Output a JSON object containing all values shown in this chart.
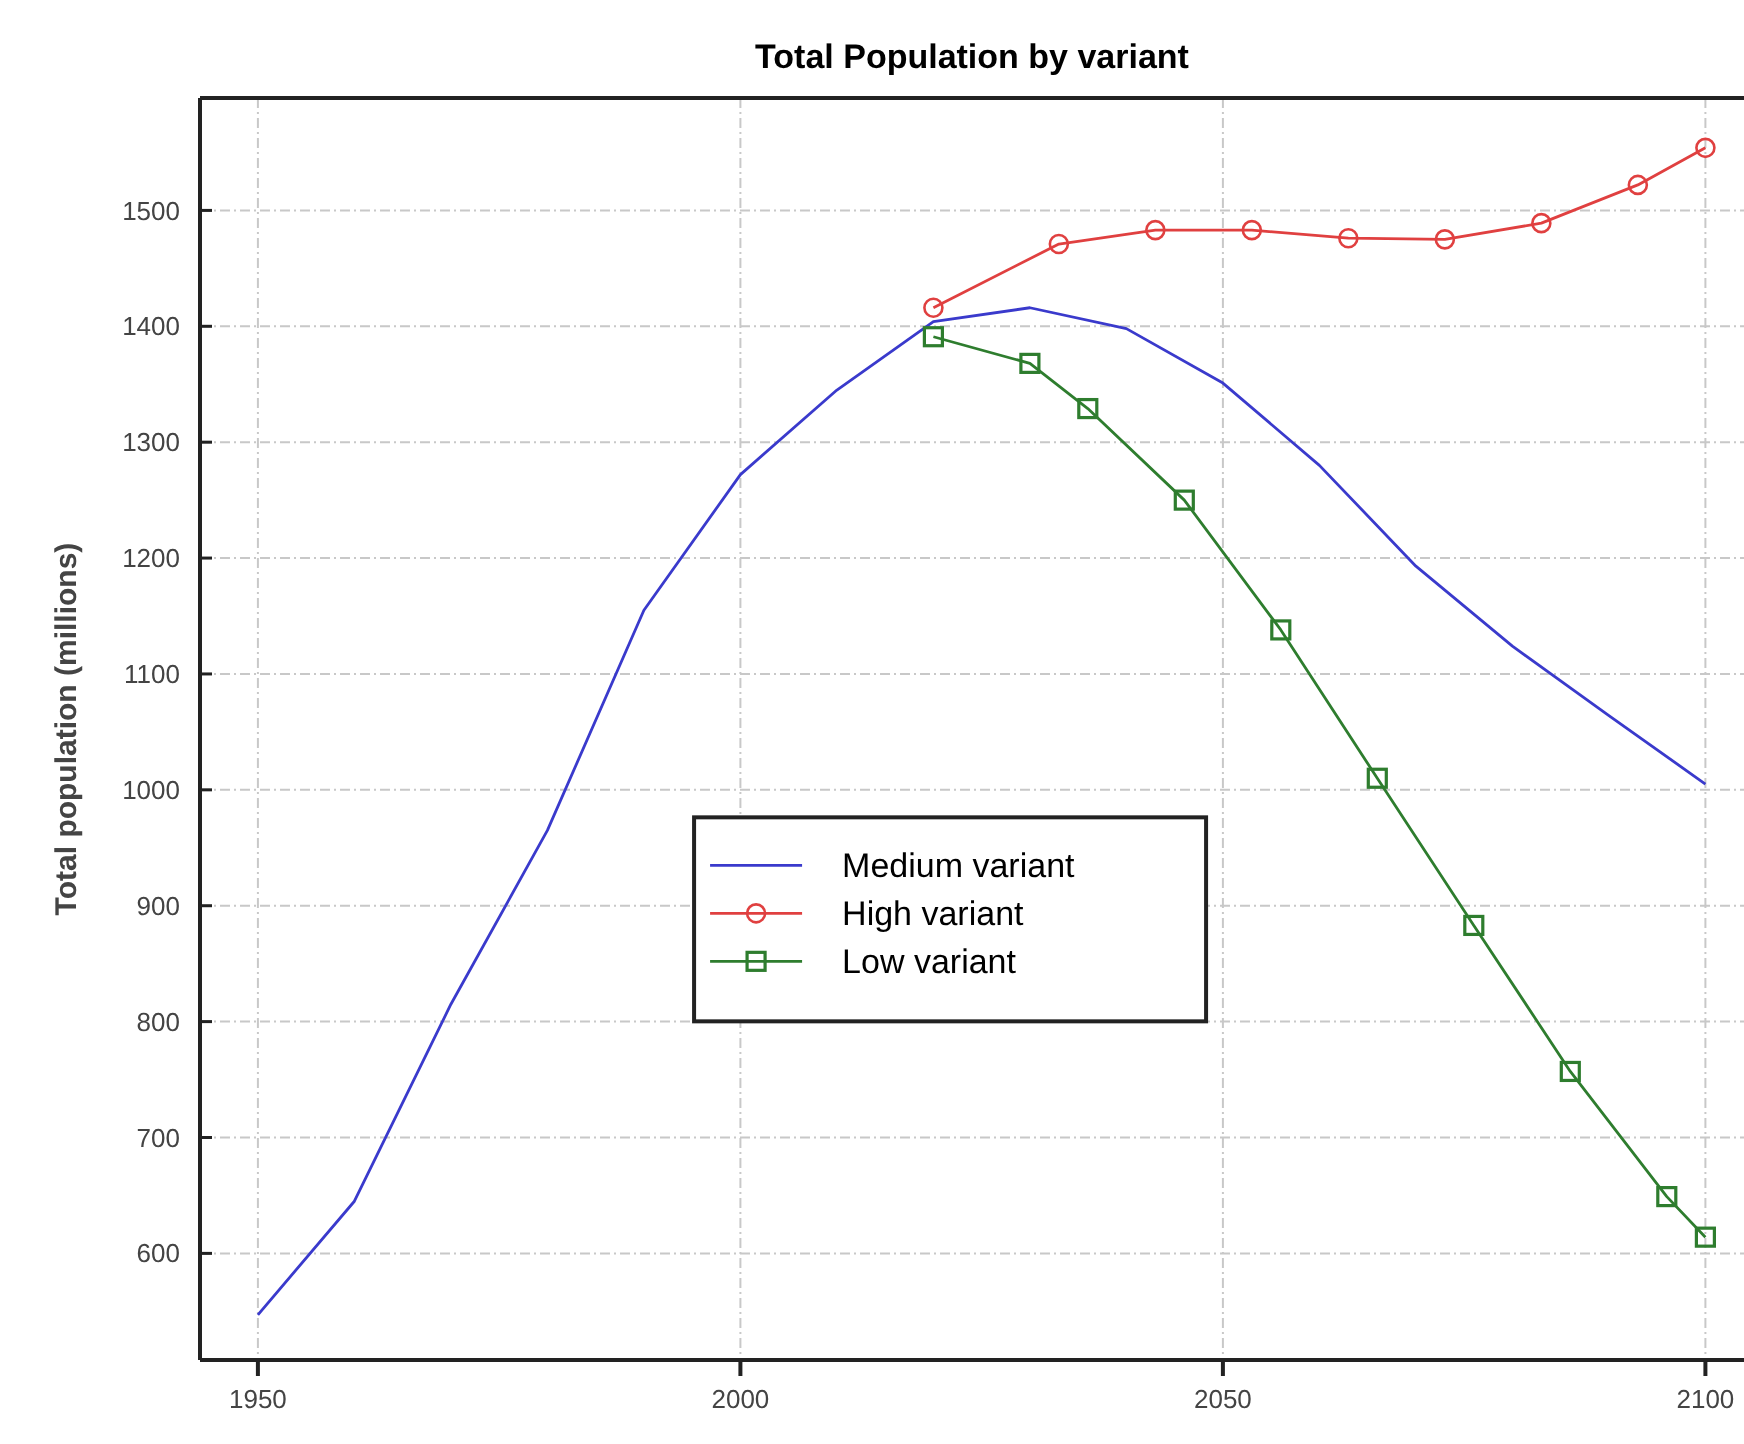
{
  "chart_data": {
    "type": "line",
    "title": "Total Population by variant",
    "ylabel": "Total population (millions)",
    "xlim": [
      1944,
      2104
    ],
    "xticks": [
      1950,
      2000,
      2050,
      2100
    ],
    "ylim": [
      508,
      1597
    ],
    "yticks": [
      600,
      700,
      800,
      900,
      1000,
      1100,
      1200,
      1300,
      1400,
      1500
    ],
    "grid": true,
    "legend": "center",
    "series": [
      {
        "name": "Medium variant",
        "color": "#3a3acc",
        "marker": "none",
        "x": [
          1950,
          1960,
          1970,
          1980,
          1990,
          2000,
          2010,
          2020,
          2030,
          2040,
          2050,
          2060,
          2070,
          2080,
          2090,
          2100
        ],
        "values": [
          547,
          645,
          815,
          965,
          1155,
          1272,
          1345,
          1404,
          1416,
          1398,
          1351,
          1280,
          1193,
          1124,
          1064,
          1005
        ]
      },
      {
        "name": "High variant",
        "color": "#e04040",
        "marker": "circle",
        "x": [
          2020,
          2033,
          2043,
          2053,
          2063,
          2073,
          2083,
          2093,
          2100
        ],
        "values": [
          1416,
          1471,
          1483,
          1483,
          1476,
          1475,
          1489,
          1522,
          1554
        ]
      },
      {
        "name": "Low variant",
        "color": "#2e7d2e",
        "marker": "square",
        "x": [
          2020,
          2030,
          2036,
          2046,
          2056,
          2066,
          2076,
          2086,
          2096,
          2100
        ],
        "values": [
          1391,
          1368,
          1329,
          1250,
          1138,
          1010,
          883,
          757,
          649,
          614
        ]
      }
    ]
  }
}
